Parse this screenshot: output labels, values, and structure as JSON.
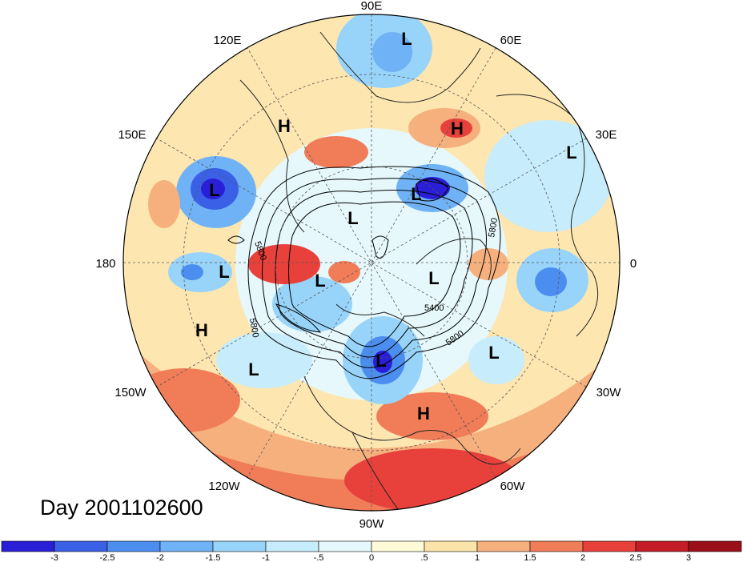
{
  "title": "Day 2001102600",
  "longitude_labels": [
    "90E",
    "60E",
    "30E",
    "0",
    "30W",
    "60W",
    "90W",
    "120W",
    "150W",
    "180",
    "150E",
    "120E"
  ],
  "pressure_centers": [
    {
      "label": "L"
    },
    {
      "label": "H"
    },
    {
      "label": "H"
    },
    {
      "label": "L"
    },
    {
      "label": "L"
    },
    {
      "label": "L"
    },
    {
      "label": "L"
    },
    {
      "label": "L"
    },
    {
      "label": "L"
    },
    {
      "label": "L"
    },
    {
      "label": "H"
    },
    {
      "label": "L"
    },
    {
      "label": "L"
    },
    {
      "label": "L"
    },
    {
      "label": "H"
    }
  ],
  "contour_labels": [
    "5800",
    "5800",
    "5400",
    "5800",
    "5800"
  ],
  "colorbar": {
    "ticks": [
      "-3",
      "-2.5",
      "-2",
      "-1.5",
      "-1",
      "-.5",
      "0",
      ".5",
      "1",
      "1.5",
      "2",
      "2.5",
      "3"
    ],
    "colors": [
      "#2a1fd6",
      "#3b60e8",
      "#4c8ef0",
      "#6fb2f5",
      "#98d4f9",
      "#c7ecfb",
      "#e6f8fc",
      "#fffbd9",
      "#fbe4a9",
      "#f6b07d",
      "#f07c58",
      "#e8413c",
      "#c41d27",
      "#9b0f1a"
    ]
  },
  "colors": {
    "land_outline": "#222222",
    "contour": "#000000",
    "grid": "#555555"
  }
}
